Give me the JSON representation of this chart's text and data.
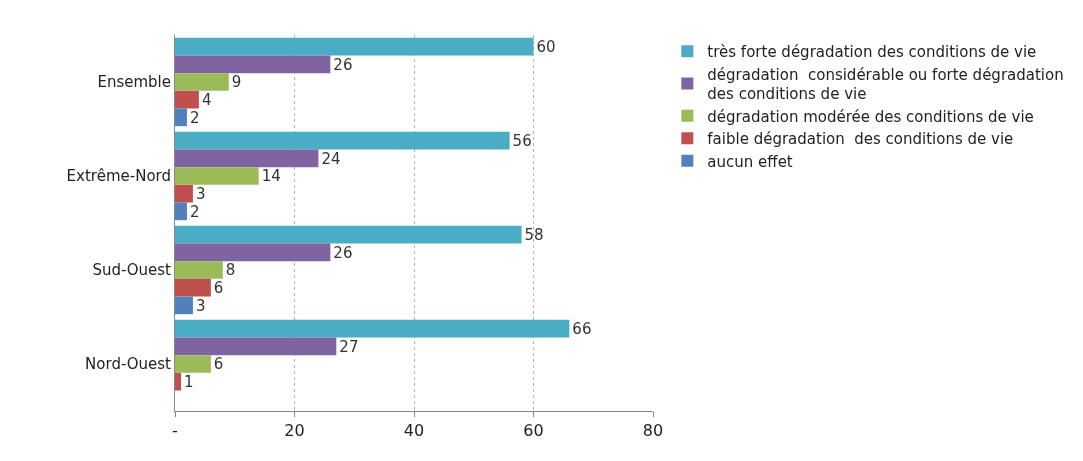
{
  "chart_data": {
    "type": "bar",
    "orientation": "horizontal",
    "categories": [
      "Ensemble",
      "Extrême-Nord",
      "Sud-Ouest",
      "Nord-Ouest"
    ],
    "series": [
      {
        "name": "très forte dégradation des conditions de vie",
        "color": "#4bacc6",
        "values": [
          60,
          56,
          58,
          66
        ]
      },
      {
        "name": "dégradation  considérable ou forte dégradation des conditions de vie",
        "color": "#8064a2",
        "values": [
          26,
          24,
          26,
          27
        ]
      },
      {
        "name": "dégradation modérée des conditions de vie",
        "color": "#9bbb59",
        "values": [
          9,
          14,
          8,
          6
        ]
      },
      {
        "name": "faible dégradation  des conditions de vie",
        "color": "#c0504d",
        "values": [
          4,
          3,
          6,
          1
        ]
      },
      {
        "name": "aucun effet",
        "color": "#4f81bd",
        "values": [
          2,
          2,
          3,
          null
        ]
      }
    ],
    "xlim": [
      0,
      80
    ],
    "xticks": [
      {
        "value": 0,
        "label": "-"
      },
      20,
      40,
      60,
      80
    ],
    "grid": "x",
    "legend": "right",
    "data_labels": true
  }
}
